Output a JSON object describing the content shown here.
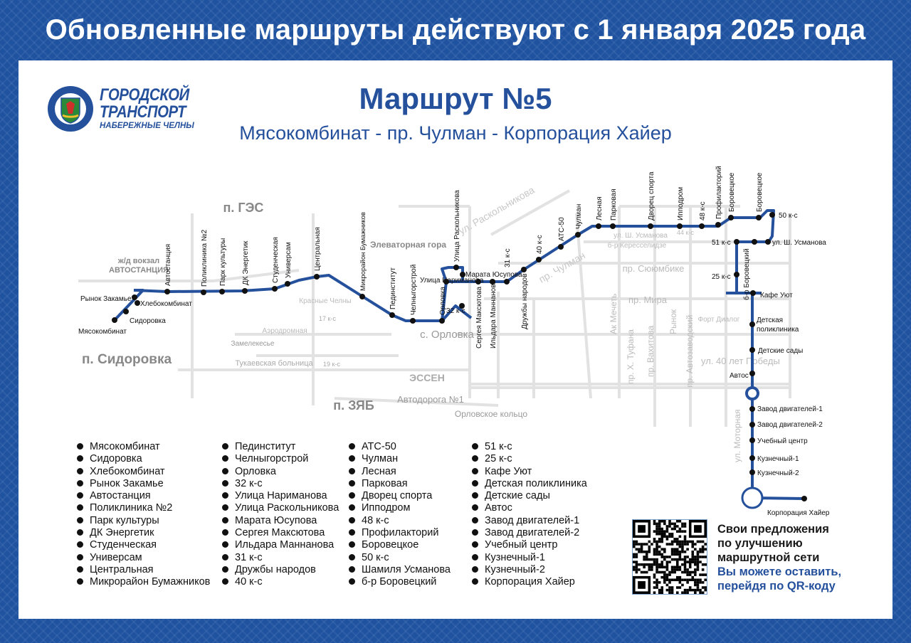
{
  "header": {
    "title": "Обновленные маршруты действуют с 1 января 2025 года"
  },
  "logo": {
    "line1": "ГОРОДСКОЙ",
    "line2": "ТРАНСПОРТ",
    "line3": "НАБЕРЕЖНЫЕ ЧЕЛНЫ",
    "ring_text": "ГОРОДСКОЙ ТРАНСПОРТ • НАБЕРЕЖНЫЕ ЧЕЛНЫ"
  },
  "route": {
    "title": "Маршрут №5",
    "subtitle": "Мясокомбинат - пр. Чулман - Корпорация Хайер"
  },
  "colors": {
    "route": "#24509c",
    "frame": "#1f53a0",
    "stop": "#111111",
    "background_streets": "#dcdcdc"
  },
  "map": {
    "districts": [
      "п. ГЭС",
      "п. Сидоровка",
      "п. ЗЯБ",
      "с. Орловка",
      "Элеваторная гора",
      "ж/д вокзал",
      "АВТОСТАНЦИЯ",
      "ЭССЕН"
    ],
    "streets": [
      "ул. Раскольникова",
      "пр. Чулман",
      "пр. Сююмбике",
      "пр. Мира",
      "ул. 40 лет Победы",
      "ул. Ш. Усманова",
      "б-р Кересселидзе",
      "пр. Автозаводский",
      "ул. Моторная",
      "Автодорога №1",
      "Орловское кольцо",
      "пр. Вахитова",
      "пр. Х. Туфана",
      "Форт Диалог",
      "Красные Челны",
      "Замелекесье",
      "Аэродромная",
      "Тукаевская больница",
      "Рынок",
      "Ак Мечеть",
      "17 к-с",
      "19 к-с",
      "44 к-с"
    ],
    "stops": [
      "Мясокомбинат",
      "Сидоровка",
      "Хлебокомбинат",
      "Рынок Закамье",
      "Автостанция",
      "Поликлиника №2",
      "Парк культуры",
      "ДК Энергетик",
      "Студенческая",
      "Универсам",
      "Центральная",
      "Микрорайон Бумажников",
      "Пединститут",
      "Челныгорстрой",
      "Орловка",
      "32 к-с",
      "Улица Нариманова",
      "Улица Раскольникова",
      "Марата Юсупова",
      "Сергея Максютова",
      "Ильдара Маннанова",
      "31 к-с",
      "Дружбы народов",
      "40 к-с",
      "АТС-50",
      "Чулман",
      "Лесная",
      "Парковая",
      "Дворец спорта",
      "Ипподром",
      "48 к-с",
      "Профилакторий",
      "Боровецкое",
      "Боровецкое",
      "50 к-с",
      "ул. Ш. Усманова",
      "б-р Боровецкий",
      "51 к-с",
      "25 к-с",
      "Кафе Уют",
      "Детская поликлиника",
      "Детские сады",
      "Автос",
      "Завод двигателей-1",
      "Завод двигателей-2",
      "Учебный центр",
      "Кузнечный-1",
      "Кузнечный-2",
      "Корпорация Хайер"
    ]
  },
  "stop_list": [
    [
      "Мясокомбинат",
      "Сидоровка",
      "Хлебокомбинат",
      "Рынок Закамье",
      "Автостанция",
      "Поликлиника №2",
      "Парк культуры",
      "ДК Энергетик",
      "Студенческая",
      "Универсам",
      "Центральная",
      "Микрорайон Бумажников"
    ],
    [
      "Пединститут",
      "Челныгорстрой",
      "Орловка",
      "32 к-с",
      "Улица Нариманова",
      "Улица Раскольникова",
      "Марата Юсупова",
      "Сергея Максютова",
      "Ильдара Маннанова",
      "31 к-с",
      "Дружбы народов",
      "40 к-с"
    ],
    [
      "АТС-50",
      "Чулман",
      "Лесная",
      "Парковая",
      "Дворец спорта",
      "Ипподром",
      "48 к-с",
      "Профилакторий",
      "Боровецкое",
      "50 к-с",
      "Шамиля Усманова",
      "б-р Боровецкий"
    ],
    [
      "51 к-с",
      "25 к-с",
      "Кафе Уют",
      "Детская поликлиника",
      "Детские сады",
      "Автос",
      "Завод двигателей-1",
      "Завод двигателей-2",
      "Учебный центр",
      "Кузнечный-1",
      "Кузнечный-2",
      "Корпорация Хайер"
    ]
  ],
  "feedback": {
    "line1": "Свои предложения",
    "line2": "по улучшению",
    "line3": "маршрутной сети",
    "line4": "Вы можете оставить,",
    "line5": "перейдя по QR-коду",
    "qr_icon": "qr-code"
  }
}
